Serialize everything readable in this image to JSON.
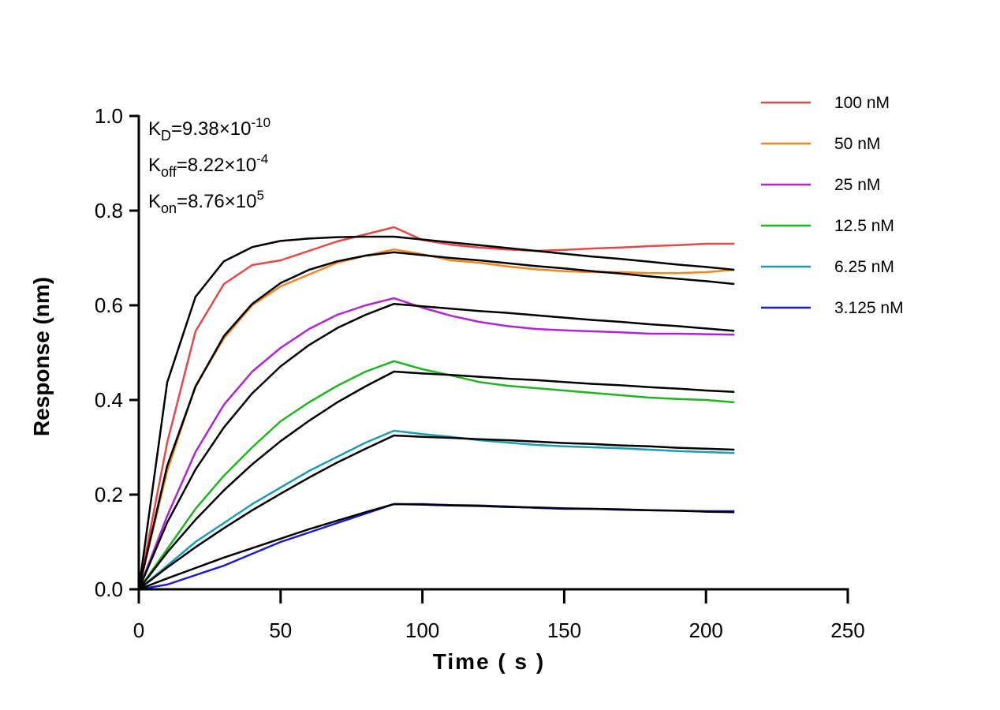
{
  "chart_data": {
    "type": "line",
    "xlabel": "Time ( s )",
    "ylabel": "Response (nm)",
    "xlim": [
      0,
      250
    ],
    "ylim": [
      0,
      1.0
    ],
    "xticks": [
      0,
      50,
      100,
      150,
      200,
      250
    ],
    "yticks": [
      {
        "value": 0,
        "label": "0.0"
      },
      0.2,
      0.4,
      0.6,
      0.8,
      {
        "value": 1.0,
        "label": "1.0"
      }
    ],
    "legend": "right",
    "annotations": [
      {
        "symbol": "K",
        "subscript": "D",
        "text": "=9.38×10",
        "exponent": "-10"
      },
      {
        "symbol": "K",
        "subscript": "off",
        "text": "=8.22×10",
        "exponent": "-4"
      },
      {
        "symbol": "K",
        "subscript": "on",
        "text": "=8.76×10",
        "exponent": "5"
      }
    ],
    "x": [
      0,
      10,
      20,
      30,
      40,
      50,
      60,
      70,
      80,
      90,
      100,
      110,
      120,
      130,
      140,
      150,
      160,
      170,
      180,
      190,
      200,
      210
    ],
    "series": [
      {
        "name": "100 nM",
        "color": "#e8474a",
        "values": [
          0,
          0.31,
          0.545,
          0.645,
          0.685,
          0.695,
          0.715,
          0.735,
          0.75,
          0.765,
          0.738,
          0.728,
          0.722,
          0.718,
          0.715,
          0.717,
          0.72,
          0.722,
          0.725,
          0.727,
          0.73,
          0.73
        ]
      },
      {
        "name": "50 nM",
        "color": "#f5861f",
        "values": [
          0,
          0.25,
          0.43,
          0.53,
          0.6,
          0.64,
          0.665,
          0.69,
          0.705,
          0.718,
          0.708,
          0.695,
          0.69,
          0.682,
          0.676,
          0.672,
          0.67,
          0.67,
          0.668,
          0.668,
          0.67,
          0.675
        ]
      },
      {
        "name": "25 nM",
        "color": "#b023d6",
        "values": [
          0,
          0.155,
          0.29,
          0.39,
          0.46,
          0.51,
          0.55,
          0.58,
          0.6,
          0.615,
          0.595,
          0.578,
          0.565,
          0.556,
          0.55,
          0.547,
          0.545,
          0.543,
          0.54,
          0.54,
          0.539,
          0.538
        ]
      },
      {
        "name": "12.5 nM",
        "color": "#1fb51f",
        "values": [
          0,
          0.085,
          0.17,
          0.24,
          0.3,
          0.355,
          0.395,
          0.43,
          0.46,
          0.482,
          0.465,
          0.452,
          0.438,
          0.43,
          0.425,
          0.42,
          0.415,
          0.41,
          0.405,
          0.402,
          0.4,
          0.395
        ]
      },
      {
        "name": "6.25 nM",
        "color": "#1f9db0",
        "values": [
          0,
          0.05,
          0.1,
          0.14,
          0.18,
          0.215,
          0.25,
          0.28,
          0.31,
          0.335,
          0.328,
          0.322,
          0.315,
          0.31,
          0.305,
          0.302,
          0.3,
          0.298,
          0.295,
          0.292,
          0.29,
          0.288
        ]
      },
      {
        "name": "3.125 nM",
        "color": "#1a1ad4",
        "values": [
          0,
          0.01,
          0.03,
          0.05,
          0.075,
          0.1,
          0.12,
          0.14,
          0.16,
          0.18,
          0.18,
          0.178,
          0.177,
          0.175,
          0.172,
          0.17,
          0.17,
          0.168,
          0.167,
          0.166,
          0.165,
          0.165
        ]
      }
    ],
    "fits": [
      {
        "color": "#000000",
        "values": [
          0,
          0.437,
          0.618,
          0.693,
          0.723,
          0.736,
          0.741,
          0.744,
          0.745,
          0.745,
          0.739,
          0.733,
          0.727,
          0.721,
          0.715,
          0.709,
          0.703,
          0.698,
          0.692,
          0.686,
          0.681,
          0.675
        ]
      },
      {
        "color": "#000000",
        "values": [
          0,
          0.261,
          0.428,
          0.535,
          0.603,
          0.647,
          0.675,
          0.693,
          0.705,
          0.712,
          0.706,
          0.7,
          0.695,
          0.689,
          0.683,
          0.678,
          0.672,
          0.667,
          0.661,
          0.656,
          0.651,
          0.645
        ]
      },
      {
        "color": "#000000",
        "values": [
          0,
          0.141,
          0.253,
          0.342,
          0.414,
          0.471,
          0.516,
          0.552,
          0.58,
          0.603,
          0.598,
          0.593,
          0.588,
          0.584,
          0.579,
          0.574,
          0.569,
          0.565,
          0.56,
          0.556,
          0.551,
          0.546
        ]
      },
      {
        "color": "#000000",
        "values": [
          0,
          0.078,
          0.147,
          0.209,
          0.264,
          0.313,
          0.356,
          0.395,
          0.429,
          0.46,
          0.456,
          0.453,
          0.449,
          0.445,
          0.442,
          0.438,
          0.434,
          0.431,
          0.427,
          0.424,
          0.42,
          0.417
        ]
      },
      {
        "color": "#000000",
        "values": [
          0,
          0.046,
          0.089,
          0.129,
          0.167,
          0.202,
          0.236,
          0.268,
          0.297,
          0.325,
          0.322,
          0.32,
          0.317,
          0.315,
          0.312,
          0.309,
          0.307,
          0.304,
          0.302,
          0.299,
          0.297,
          0.295
        ]
      },
      {
        "color": "#000000",
        "values": [
          0,
          0.023,
          0.045,
          0.067,
          0.087,
          0.107,
          0.127,
          0.145,
          0.163,
          0.18,
          0.179,
          0.177,
          0.176,
          0.174,
          0.173,
          0.171,
          0.17,
          0.169,
          0.167,
          0.166,
          0.164,
          0.163
        ]
      }
    ]
  }
}
